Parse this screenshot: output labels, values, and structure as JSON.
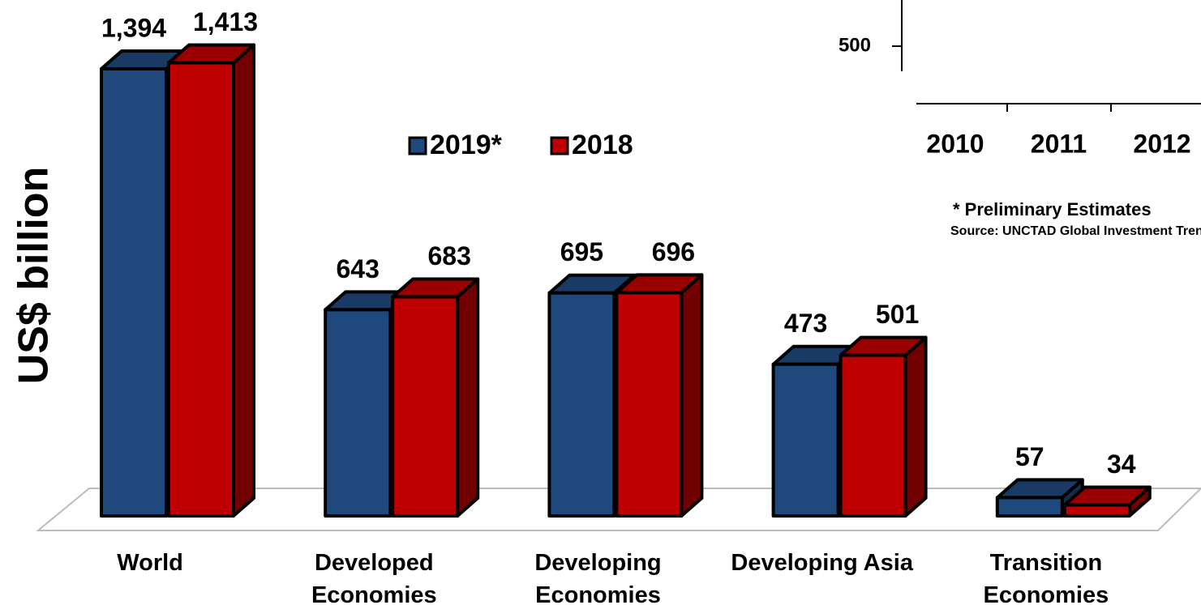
{
  "chart_data": [
    {
      "type": "bar3d",
      "y_label": "US$ billion",
      "categories": [
        "World",
        "Developed Economies",
        "Developing Economies",
        "Developing Asia",
        "Transition Economies"
      ],
      "series": [
        {
          "name": "2019*",
          "color": "#1f497d",
          "values": [
            1394,
            643,
            695,
            473,
            57
          ],
          "value_labels": [
            "1,394",
            "643",
            "695",
            "473",
            "57"
          ]
        },
        {
          "name": "2018",
          "color": "#c00000",
          "values": [
            1413,
            683,
            696,
            501,
            34
          ],
          "value_labels": [
            "1,413",
            "683",
            "696",
            "501",
            "34"
          ]
        }
      ],
      "ylim": [
        0,
        1500
      ]
    },
    {
      "type": "line",
      "categories": [
        "2010",
        "2011",
        "2012"
      ],
      "yticks": [
        500
      ],
      "annotations": [
        "* Preliminary Estimates",
        "Source: UNCTAD Global Investment Trends Monitor"
      ]
    }
  ]
}
